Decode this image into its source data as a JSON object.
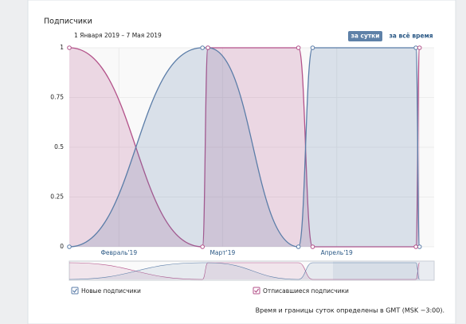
{
  "title": "Подписчики",
  "date_range": "1 Января 2019 – 7 Мая 2019",
  "buttons": [
    "за сутки",
    "за всё время"
  ],
  "footer": "Время и границы суток определены в GMT (MSK −3:00).",
  "chart_data": {
    "type": "line",
    "x": [
      0,
      36.5,
      38,
      62.8,
      66.7,
      95,
      96
    ],
    "series": [
      {
        "name": "Новые подписчики",
        "color": "#5b7da8",
        "values": [
          0,
          1,
          1,
          0,
          1,
          1,
          0
        ]
      },
      {
        "name": "Отписавшиеся подписчики",
        "color": "#b3528a",
        "values": [
          1,
          0,
          1,
          1,
          0,
          0,
          1
        ]
      }
    ],
    "xlim": [
      0,
      100
    ],
    "xticks": [
      {
        "value": 13.6,
        "label": "Февраль'19"
      },
      {
        "value": 42,
        "label": "Март'19"
      },
      {
        "value": 73.3,
        "label": "Апрель'19"
      }
    ],
    "ylim": [
      0,
      1
    ],
    "yticks": [
      0,
      0.25,
      0.5,
      0.75,
      1
    ],
    "grid": true
  }
}
